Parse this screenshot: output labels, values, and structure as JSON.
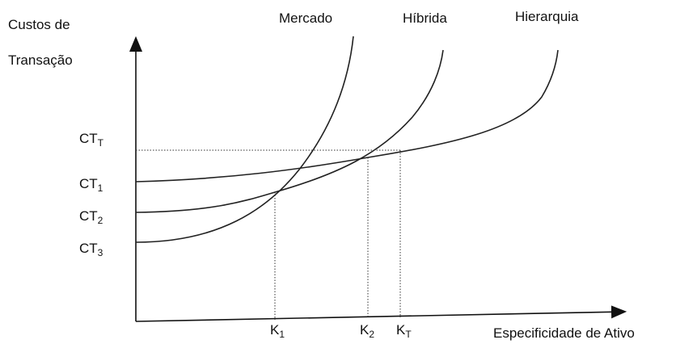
{
  "y_axis_label": [
    "Custos de",
    "Transação"
  ],
  "x_axis_label": "Especificidade de Ativo",
  "curves": [
    {
      "label": "Mercado"
    },
    {
      "label": "Híbrida"
    },
    {
      "label": "Hierarquia"
    }
  ],
  "y_levels": [
    {
      "main": "CT",
      "sub": "T"
    },
    {
      "main": "CT",
      "sub": "1"
    },
    {
      "main": "CT",
      "sub": "2"
    },
    {
      "main": "CT",
      "sub": "3"
    }
  ],
  "x_levels": [
    {
      "main": "K",
      "sub": "1"
    },
    {
      "main": "K",
      "sub": "2"
    },
    {
      "main": "K",
      "sub": "T"
    }
  ]
}
